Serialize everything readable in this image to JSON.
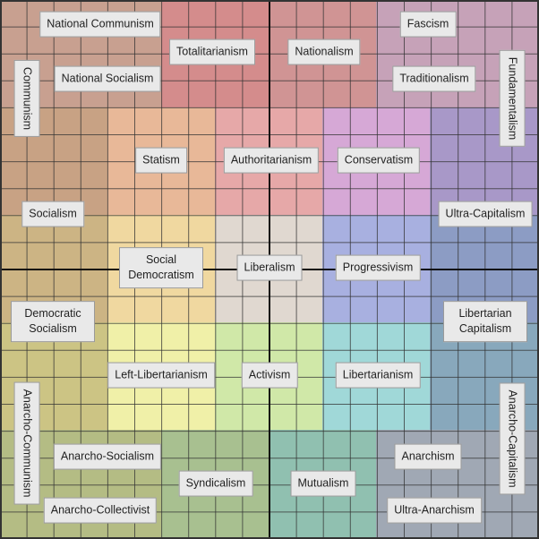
{
  "labels": [
    "National Communism",
    "Totalitarianism",
    "Nationalism",
    "Fascism",
    "Communism",
    "National Socialism",
    "Traditionalism",
    "Fundamentalism",
    "Statism",
    "Authoritarianism",
    "Conservatism",
    "Socialism",
    "Ultra-Capitalism",
    "Social Democratism",
    "Liberalism",
    "Progressivism",
    "Democratic Socialism",
    "Libertarian Capitalism",
    "Left-Libertarianism",
    "Activism",
    "Libertarianism",
    "Anarcho-Communism",
    "Anarcho-Capitalism",
    "Anarcho-Socialism",
    "Anarchism",
    "Syndicalism",
    "Mutualism",
    "Anarcho-Collectivist",
    "Ultra-Anarchism"
  ]
}
